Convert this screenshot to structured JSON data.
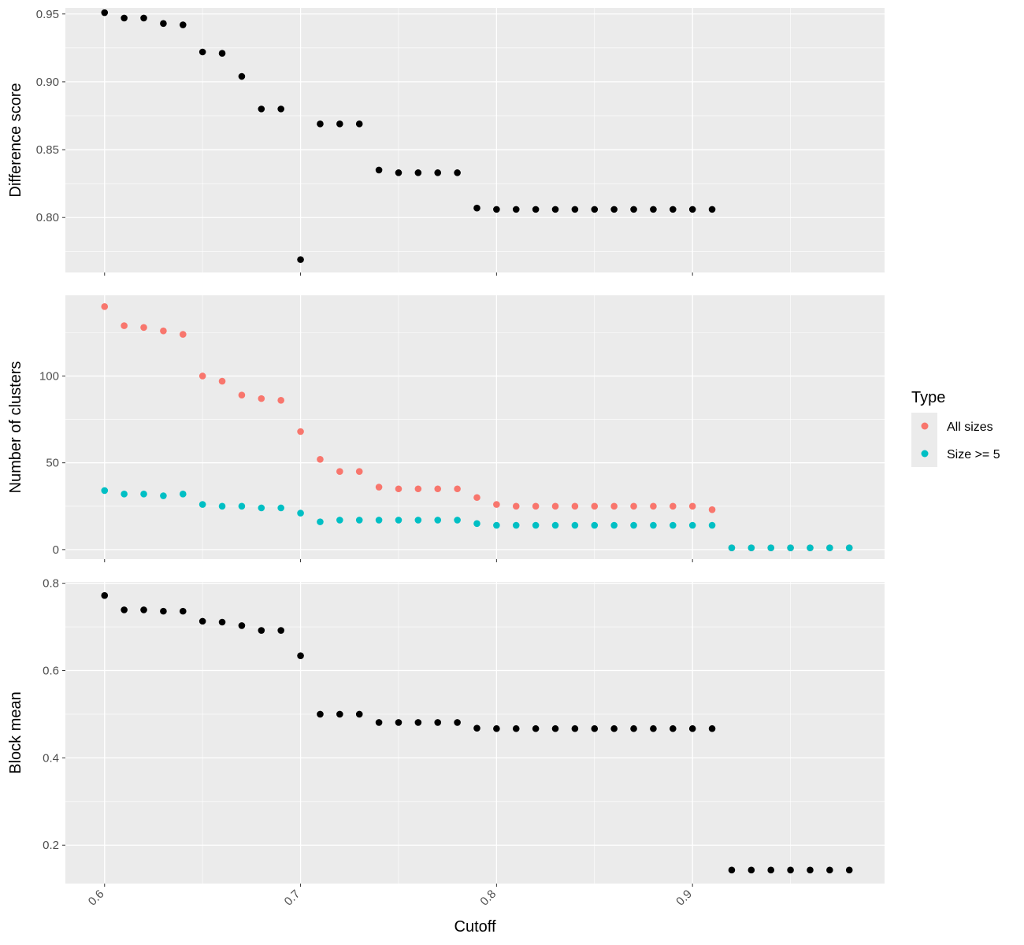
{
  "chart_data": [
    {
      "type": "scatter",
      "panel": "top",
      "ylabel": "Difference score",
      "xlabel": "",
      "xlim": [
        0.58,
        0.998
      ],
      "ylim": [
        0.7595,
        0.9545
      ],
      "x_ticks": [
        0.6,
        0.7,
        0.8,
        0.9
      ],
      "y_ticks": [
        0.8,
        0.85,
        0.9,
        0.95
      ],
      "y_tick_labels": [
        "0.80",
        "0.85",
        "0.90",
        "0.95"
      ],
      "grid": true,
      "series": [
        {
          "color": "#000000",
          "x": [
            0.6,
            0.61,
            0.62,
            0.63,
            0.64,
            0.65,
            0.66,
            0.67,
            0.68,
            0.69,
            0.7,
            0.71,
            0.72,
            0.73,
            0.74,
            0.75,
            0.76,
            0.77,
            0.78,
            0.79,
            0.8,
            0.81,
            0.82,
            0.83,
            0.84,
            0.85,
            0.86,
            0.87,
            0.88,
            0.89,
            0.9,
            0.91
          ],
          "values": [
            0.951,
            0.947,
            0.947,
            0.943,
            0.942,
            0.922,
            0.921,
            0.904,
            0.88,
            0.88,
            0.769,
            0.869,
            0.869,
            0.869,
            0.835,
            0.833,
            0.833,
            0.833,
            0.833,
            0.807,
            0.806,
            0.806,
            0.806,
            0.806,
            0.806,
            0.806,
            0.806,
            0.806,
            0.806,
            0.806,
            0.806,
            0.806
          ]
        }
      ]
    },
    {
      "type": "scatter",
      "panel": "middle",
      "ylabel": "Number of clusters",
      "xlabel": "",
      "xlim": [
        0.58,
        0.998
      ],
      "ylim": [
        -5.5,
        146.5
      ],
      "x_ticks": [
        0.6,
        0.7,
        0.8,
        0.9
      ],
      "y_ticks": [
        0,
        50,
        100
      ],
      "y_tick_labels": [
        "0",
        "50",
        "100"
      ],
      "grid": true,
      "series": [
        {
          "name": "All sizes",
          "color": "#F8766D",
          "x": [
            0.6,
            0.61,
            0.62,
            0.63,
            0.64,
            0.65,
            0.66,
            0.67,
            0.68,
            0.69,
            0.7,
            0.71,
            0.72,
            0.73,
            0.74,
            0.75,
            0.76,
            0.77,
            0.78,
            0.79,
            0.8,
            0.81,
            0.82,
            0.83,
            0.84,
            0.85,
            0.86,
            0.87,
            0.88,
            0.89,
            0.9,
            0.91,
            0.92,
            0.93,
            0.94,
            0.95,
            0.96,
            0.97,
            0.98
          ],
          "values": [
            140,
            129,
            128,
            126,
            124,
            100,
            97,
            89,
            87,
            86,
            68,
            52,
            45,
            45,
            36,
            35,
            35,
            35,
            35,
            30,
            26,
            25,
            25,
            25,
            25,
            25,
            25,
            25,
            25,
            25,
            25,
            23,
            1,
            1,
            1,
            1,
            1,
            1,
            1
          ]
        },
        {
          "name": "Size >= 5",
          "color": "#00BFC4",
          "x": [
            0.6,
            0.61,
            0.62,
            0.63,
            0.64,
            0.65,
            0.66,
            0.67,
            0.68,
            0.69,
            0.7,
            0.71,
            0.72,
            0.73,
            0.74,
            0.75,
            0.76,
            0.77,
            0.78,
            0.79,
            0.8,
            0.81,
            0.82,
            0.83,
            0.84,
            0.85,
            0.86,
            0.87,
            0.88,
            0.89,
            0.9,
            0.91,
            0.92,
            0.93,
            0.94,
            0.95,
            0.96,
            0.97,
            0.98
          ],
          "values": [
            34,
            32,
            32,
            31,
            32,
            26,
            25,
            25,
            24,
            24,
            21,
            16,
            17,
            17,
            17,
            17,
            17,
            17,
            17,
            15,
            14,
            14,
            14,
            14,
            14,
            14,
            14,
            14,
            14,
            14,
            14,
            14,
            1,
            1,
            1,
            1,
            1,
            1,
            1
          ]
        }
      ]
    },
    {
      "type": "scatter",
      "panel": "bottom",
      "ylabel": "Block mean",
      "xlabel": "Cutoff",
      "xlim": [
        0.58,
        0.998
      ],
      "ylim": [
        0.112,
        0.803
      ],
      "x_ticks": [
        0.6,
        0.7,
        0.8,
        0.9
      ],
      "x_tick_labels": [
        "0.6",
        "0.7",
        "0.8",
        "0.9"
      ],
      "y_ticks": [
        0.2,
        0.4,
        0.6,
        0.8
      ],
      "y_tick_labels": [
        "0.2",
        "0.4",
        "0.6",
        "0.8"
      ],
      "grid": true,
      "series": [
        {
          "color": "#000000",
          "x": [
            0.6,
            0.61,
            0.62,
            0.63,
            0.64,
            0.65,
            0.66,
            0.67,
            0.68,
            0.69,
            0.7,
            0.71,
            0.72,
            0.73,
            0.74,
            0.75,
            0.76,
            0.77,
            0.78,
            0.79,
            0.8,
            0.81,
            0.82,
            0.83,
            0.84,
            0.85,
            0.86,
            0.87,
            0.88,
            0.89,
            0.9,
            0.91,
            0.92,
            0.93,
            0.94,
            0.95,
            0.96,
            0.97,
            0.98
          ],
          "values": [
            0.772,
            0.739,
            0.739,
            0.736,
            0.736,
            0.713,
            0.711,
            0.703,
            0.692,
            0.692,
            0.634,
            0.5,
            0.5,
            0.5,
            0.481,
            0.481,
            0.481,
            0.481,
            0.481,
            0.468,
            0.467,
            0.467,
            0.467,
            0.467,
            0.467,
            0.467,
            0.467,
            0.467,
            0.467,
            0.467,
            0.467,
            0.467,
            0.143,
            0.143,
            0.143,
            0.143,
            0.143,
            0.143,
            0.143
          ]
        }
      ]
    }
  ],
  "legend": {
    "title": "Type",
    "items": [
      {
        "label": "All sizes",
        "color": "#F8766D"
      },
      {
        "label": "Size >= 5",
        "color": "#00BFC4"
      }
    ]
  }
}
